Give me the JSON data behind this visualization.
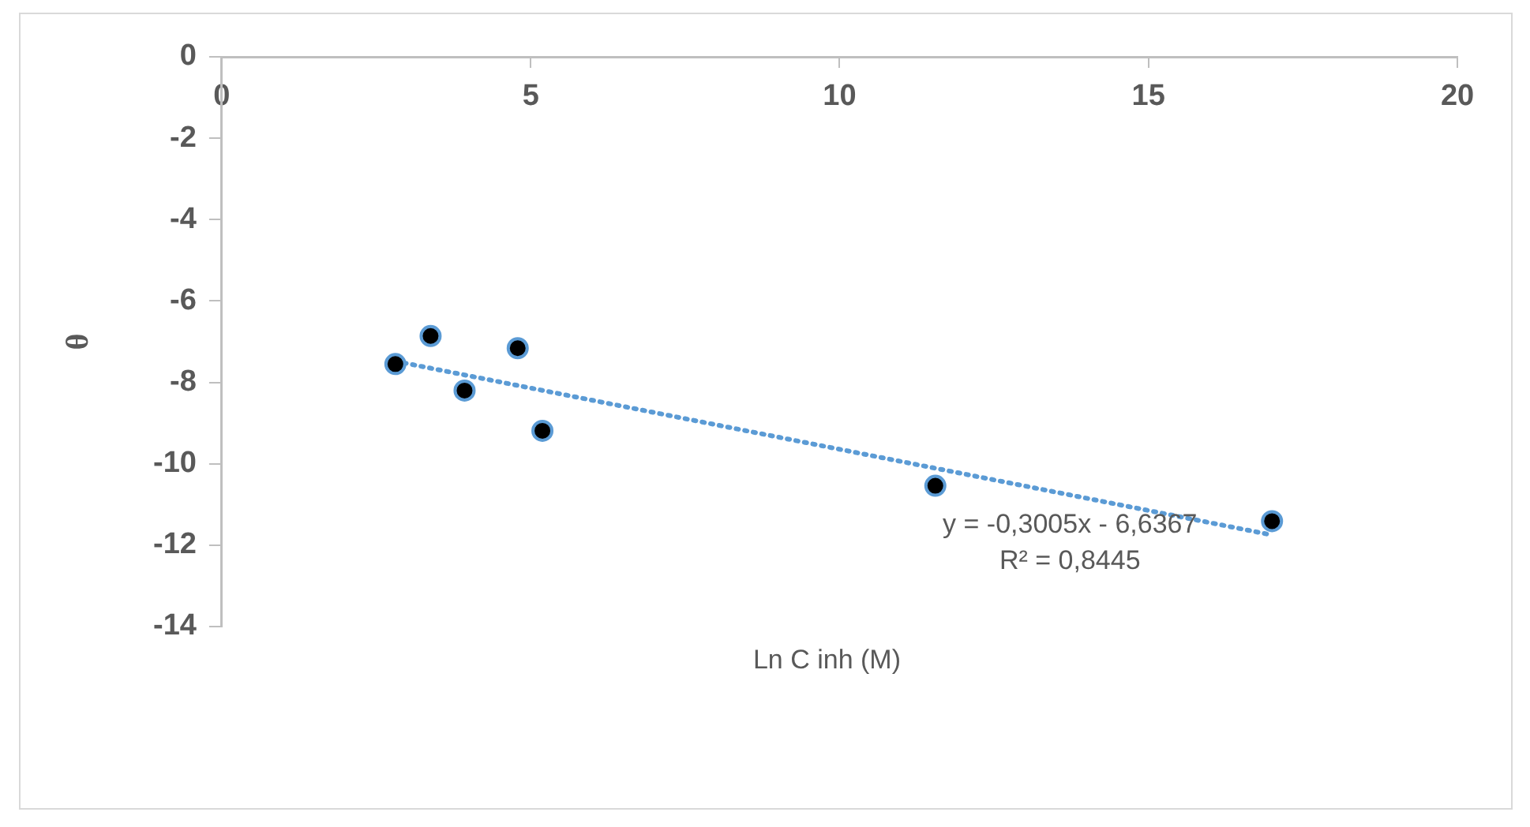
{
  "chart_data": {
    "type": "scatter",
    "xlabel": "Ln C inh (M)",
    "ylabel": "θ",
    "xlim": [
      0,
      20
    ],
    "xticks": [
      0,
      5,
      10,
      15,
      20
    ],
    "ylim": [
      -14,
      0
    ],
    "yticks": [
      -14,
      -12,
      -10,
      -8,
      -6,
      -4,
      -2,
      0
    ],
    "grid": false,
    "legend": false,
    "marker": "circle",
    "series": [
      {
        "color": "#000000",
        "x": [
          2.81,
          3.38,
          3.93,
          4.79,
          5.19,
          11.55,
          17.0
        ],
        "values": [
          -7.55,
          -6.86,
          -8.2,
          -7.16,
          -9.19,
          -10.54,
          -11.41
        ]
      },
      {
        "type": "line",
        "color": "#5b9bd5",
        "line_style": "dotted",
        "marker": "none",
        "x": [
          2.81,
          17.0
        ],
        "values": [
          -7.48,
          -11.75
        ]
      }
    ],
    "annotations": [
      "y = -0,3005x - 6,6367",
      "R² = 0,8445"
    ]
  }
}
